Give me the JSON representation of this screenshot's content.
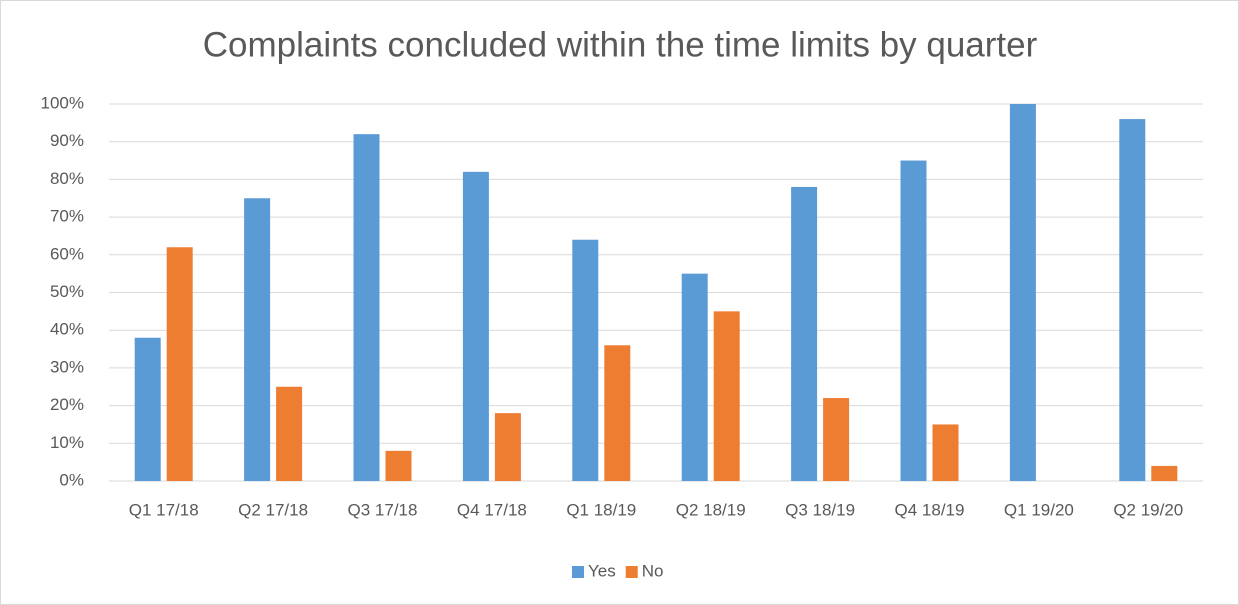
{
  "chart_data": {
    "type": "bar",
    "title": "Complaints concluded within the time limits by quarter",
    "categories": [
      "Q1 17/18",
      "Q2 17/18",
      "Q3 17/18",
      "Q4 17/18",
      "Q1 18/19",
      "Q2 18/19",
      "Q3 18/19",
      "Q4 18/19",
      "Q1 19/20",
      "Q2 19/20"
    ],
    "series": [
      {
        "name": "Yes",
        "color": "#5b9bd5",
        "values": [
          38,
          75,
          92,
          82,
          64,
          55,
          78,
          85,
          100,
          96
        ]
      },
      {
        "name": "No",
        "color": "#ed7d31",
        "values": [
          62,
          25,
          8,
          18,
          36,
          45,
          22,
          15,
          0,
          4
        ]
      }
    ],
    "ylim": [
      0,
      100
    ],
    "yticks": [
      {
        "value": 0,
        "label": "0%"
      },
      {
        "value": 10,
        "label": "10%"
      },
      {
        "value": 20,
        "label": "20%"
      },
      {
        "value": 30,
        "label": "30%"
      },
      {
        "value": 40,
        "label": "40%"
      },
      {
        "value": 50,
        "label": "50%"
      },
      {
        "value": 60,
        "label": "60%"
      },
      {
        "value": 70,
        "label": "70%"
      },
      {
        "value": 80,
        "label": "80%"
      },
      {
        "value": 90,
        "label": "90%"
      },
      {
        "value": 100,
        "label": "100%"
      }
    ],
    "grid": true,
    "legend": "bottom"
  }
}
